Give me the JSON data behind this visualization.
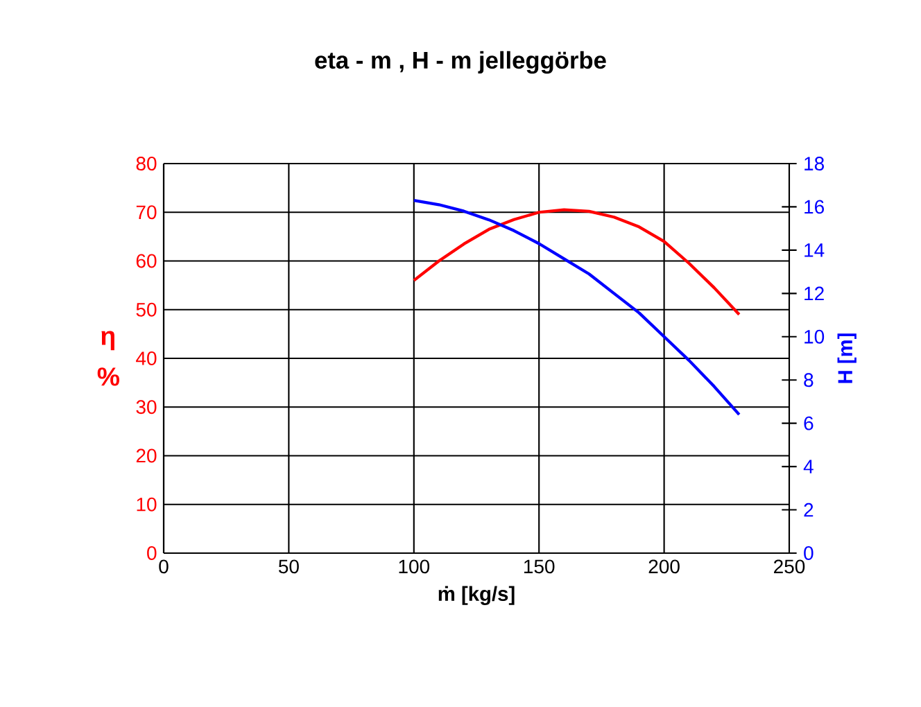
{
  "chart_data": {
    "type": "line",
    "title": "eta - m , H - m   jelleggörbe",
    "xlabel": "ṁ [kg/s]",
    "ylabel": "η %",
    "y2label": "H [m]",
    "xlim": [
      0,
      250
    ],
    "xticks": [
      0,
      50,
      100,
      150,
      200,
      250
    ],
    "ylim": [
      0,
      80
    ],
    "yticks": [
      0,
      10,
      20,
      30,
      40,
      50,
      60,
      70,
      80
    ],
    "y2lim": [
      0,
      18
    ],
    "y2ticks": [
      0,
      2,
      4,
      6,
      8,
      10,
      12,
      14,
      16,
      18
    ],
    "grid": true,
    "marker": "none",
    "line_style": "solid",
    "series": [
      {
        "color": "#ff0000",
        "x": [
          100,
          110,
          120,
          130,
          140,
          150,
          160,
          170,
          180,
          190,
          200,
          210,
          220,
          230
        ],
        "values": [
          56,
          60,
          63.5,
          66.5,
          68.5,
          70,
          70.5,
          70.2,
          69,
          67,
          64,
          59.5,
          54.5,
          49
        ]
      },
      {
        "color": "#0000ff",
        "axis": "y2",
        "x": [
          100,
          110,
          120,
          130,
          140,
          150,
          160,
          170,
          180,
          190,
          200,
          210,
          220,
          230
        ],
        "values": [
          16.3,
          16.1,
          15.8,
          15.4,
          14.9,
          14.3,
          13.6,
          12.9,
          12.0,
          11.1,
          10.0,
          8.9,
          7.7,
          6.4
        ]
      }
    ]
  }
}
